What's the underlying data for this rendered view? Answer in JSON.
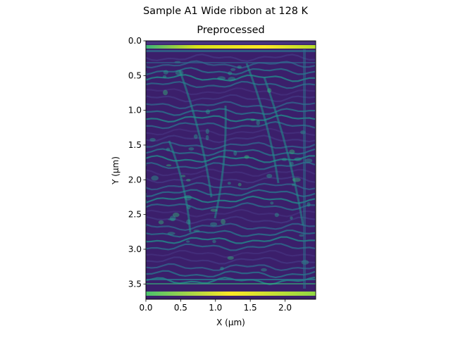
{
  "chart_data": {
    "type": "heatmap",
    "suptitle": "Sample A1 Wide ribbon at 128 K",
    "title": "Preprocessed",
    "xlabel": "X (µm)",
    "ylabel": "Y (µm)",
    "xlim": [
      0.0,
      2.44
    ],
    "ylim": [
      3.72,
      0.0
    ],
    "x_ticks": [
      "0.0",
      "0.5",
      "1.0",
      "1.5",
      "2.0"
    ],
    "x_tick_values": [
      0.0,
      0.5,
      1.0,
      1.5,
      2.0
    ],
    "y_ticks": [
      "0.0",
      "0.5",
      "1.0",
      "1.5",
      "2.0",
      "2.5",
      "3.0",
      "3.5"
    ],
    "y_tick_values": [
      0.0,
      0.5,
      1.0,
      1.5,
      2.0,
      2.5,
      3.0,
      3.5
    ],
    "colormap": "viridis",
    "grid": false
  }
}
